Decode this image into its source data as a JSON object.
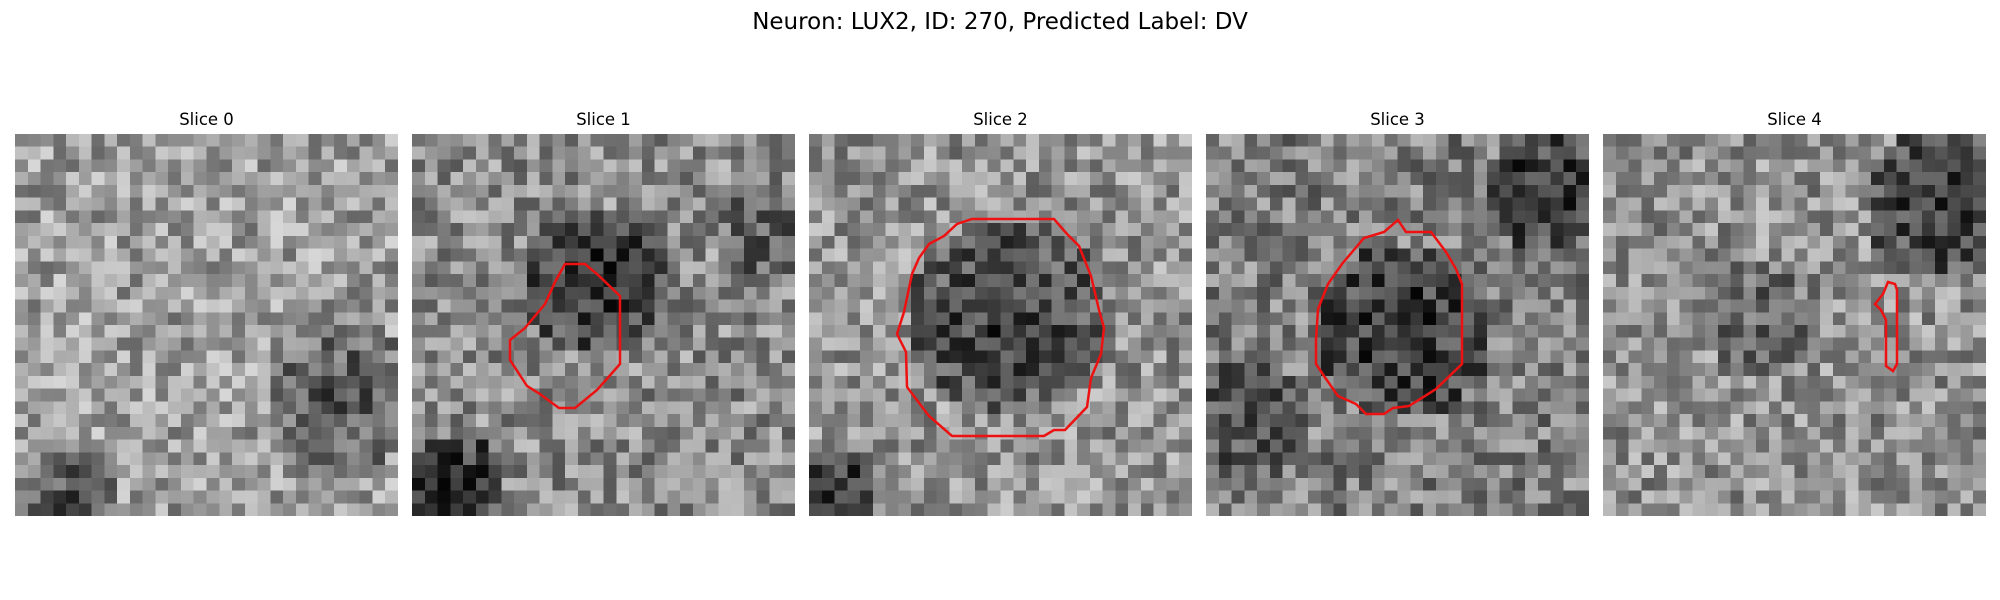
{
  "figure": {
    "title": "Neuron: LUX2, ID: 270, Predicted Label: DV"
  },
  "colors": {
    "contour": "#ee1111",
    "background": "#ffffff"
  },
  "slices": [
    {
      "label": "Slice 0",
      "has_contour": false,
      "brightness": 0.62,
      "seed": 11
    },
    {
      "label": "Slice 1",
      "has_contour": true,
      "brightness": 0.55,
      "seed": 23
    },
    {
      "label": "Slice 2",
      "has_contour": true,
      "brightness": 0.58,
      "seed": 37
    },
    {
      "label": "Slice 3",
      "has_contour": true,
      "brightness": 0.5,
      "seed": 41
    },
    {
      "label": "Slice 4",
      "has_contour": true,
      "brightness": 0.57,
      "seed": 53
    }
  ]
}
